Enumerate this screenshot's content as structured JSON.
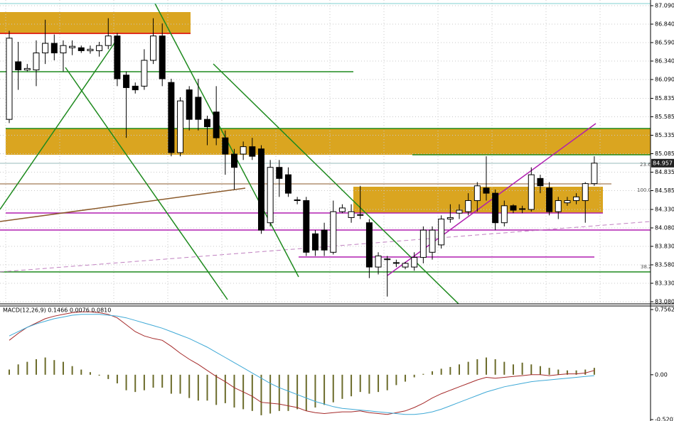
{
  "chart_data": [
    {
      "type": "candlestick",
      "ylim": [
        83.08,
        87.09
      ],
      "yticks": [
        {
          "value": 87.09,
          "label": "87.090"
        },
        {
          "value": 86.84,
          "label": "86.840"
        },
        {
          "value": 86.59,
          "label": "86.590"
        },
        {
          "value": 86.34,
          "label": "86.340"
        },
        {
          "value": 86.09,
          "label": "86.090"
        },
        {
          "value": 85.835,
          "label": "85.835"
        },
        {
          "value": 85.585,
          "label": "85.585"
        },
        {
          "value": 85.335,
          "label": "85.335"
        },
        {
          "value": 85.085,
          "label": "85.085"
        },
        {
          "value": 84.835,
          "label": "84.835"
        },
        {
          "value": 84.585,
          "label": "84.585"
        },
        {
          "value": 84.33,
          "label": "84.330"
        },
        {
          "value": 84.08,
          "label": "84.080"
        },
        {
          "value": 83.83,
          "label": "83.830"
        },
        {
          "value": 83.58,
          "label": "83.580"
        },
        {
          "value": 83.33,
          "label": "83.330"
        },
        {
          "value": 83.08,
          "label": "83.080"
        }
      ],
      "grid": true,
      "last_price": 84.957,
      "fib_labels": [
        "23.6",
        "100.0",
        "38.2"
      ],
      "up_color": "#ffffff",
      "down_color": "#000000",
      "open": [
        85.55,
        86.33,
        86.22,
        86.22,
        86.45,
        86.58,
        86.45,
        86.52,
        86.52,
        86.48,
        86.48,
        86.55,
        86.68,
        86.15,
        86.0,
        86.0,
        86.35,
        86.68,
        86.05,
        85.1,
        85.95,
        85.85,
        85.55,
        85.65,
        85.3,
        85.08,
        85.08,
        85.18,
        85.15,
        84.15,
        84.9,
        84.8,
        84.45,
        84.45,
        84.0,
        84.05,
        83.75,
        84.3,
        84.22,
        84.25,
        84.15,
        83.55,
        83.65,
        83.6,
        83.55,
        83.55,
        83.68,
        83.75,
        83.85,
        84.2,
        84.28,
        84.3,
        84.45,
        84.62,
        84.55,
        84.15,
        84.38,
        84.33,
        84.33,
        84.75,
        84.62,
        84.3,
        84.42,
        84.45,
        84.45,
        84.68
      ],
      "high": [
        86.75,
        86.6,
        86.3,
        86.62,
        86.9,
        86.7,
        86.62,
        86.62,
        86.55,
        86.55,
        86.6,
        86.92,
        86.72,
        86.2,
        86.05,
        86.5,
        86.92,
        86.85,
        86.1,
        85.85,
        86.0,
        86.1,
        85.6,
        86.0,
        85.4,
        85.15,
        85.25,
        85.3,
        85.2,
        85.0,
        85.0,
        84.9,
        84.5,
        84.5,
        84.05,
        84.15,
        84.45,
        84.4,
        84.4,
        84.65,
        84.2,
        83.75,
        83.7,
        83.65,
        83.62,
        83.75,
        84.1,
        84.1,
        84.25,
        84.4,
        84.4,
        84.55,
        84.7,
        85.05,
        84.6,
        84.45,
        84.4,
        84.38,
        84.9,
        84.8,
        84.7,
        84.5,
        84.5,
        84.55,
        84.7,
        85.05
      ],
      "low": [
        85.5,
        85.95,
        86.2,
        86.0,
        86.3,
        86.35,
        86.2,
        86.42,
        86.45,
        86.44,
        86.4,
        86.5,
        86.0,
        85.3,
        85.9,
        85.95,
        86.3,
        86.0,
        85.05,
        85.05,
        85.4,
        85.4,
        85.2,
        85.2,
        84.8,
        84.6,
        85.0,
        85.0,
        84.0,
        84.1,
        84.5,
        84.5,
        84.4,
        83.7,
        83.7,
        83.7,
        83.72,
        84.28,
        84.15,
        84.2,
        83.4,
        83.45,
        83.15,
        83.55,
        83.52,
        83.5,
        83.6,
        83.65,
        83.8,
        84.15,
        84.2,
        84.25,
        84.3,
        84.45,
        84.05,
        84.1,
        84.28,
        84.28,
        84.3,
        84.55,
        84.25,
        84.2,
        84.38,
        84.4,
        84.15,
        84.65
      ],
      "close": [
        86.65,
        86.22,
        86.24,
        86.45,
        86.58,
        86.45,
        86.55,
        86.54,
        86.48,
        86.5,
        86.55,
        86.68,
        86.1,
        85.98,
        85.95,
        86.35,
        86.68,
        86.1,
        85.1,
        85.8,
        85.55,
        85.55,
        85.45,
        85.3,
        85.08,
        84.9,
        85.18,
        85.05,
        84.05,
        84.9,
        84.75,
        84.55,
        84.46,
        83.75,
        83.78,
        83.78,
        84.3,
        84.35,
        84.3,
        84.26,
        83.55,
        83.7,
        83.66,
        83.61,
        83.6,
        83.68,
        84.05,
        84.05,
        84.2,
        84.22,
        84.32,
        84.45,
        84.65,
        84.55,
        84.15,
        84.38,
        84.32,
        84.34,
        84.8,
        84.65,
        84.3,
        84.45,
        84.45,
        84.5,
        84.68,
        84.957
      ]
    },
    {
      "type": "macd",
      "title": "MACD(12,26,9) 0.1466 0.0076 0.0810",
      "ylim": [
        -0.5201,
        0.7562
      ],
      "yticks": [
        0.7562,
        {
          "value": 0,
          "label": "0.00"
        },
        -0.5201
      ],
      "series": [
        {
          "type": "bar",
          "color": "#6b6b2a",
          "values": [
            0.06,
            0.12,
            0.15,
            0.18,
            0.2,
            0.17,
            0.15,
            0.1,
            0.06,
            0.03,
            -0.01,
            -0.05,
            -0.1,
            -0.18,
            -0.2,
            -0.18,
            -0.15,
            -0.15,
            -0.22,
            -0.22,
            -0.27,
            -0.3,
            -0.3,
            -0.35,
            -0.33,
            -0.38,
            -0.4,
            -0.42,
            -0.47,
            -0.45,
            -0.42,
            -0.42,
            -0.4,
            -0.42,
            -0.38,
            -0.35,
            -0.32,
            -0.28,
            -0.25,
            -0.2,
            -0.22,
            -0.2,
            -0.18,
            -0.12,
            -0.08,
            -0.03,
            0.01,
            0.04,
            0.07,
            0.09,
            0.12,
            0.15,
            0.18,
            0.2,
            0.18,
            0.15,
            0.12,
            0.14,
            0.12,
            0.1,
            0.08,
            0.06,
            0.05,
            0.05,
            0.06,
            0.08
          ]
        },
        {
          "type": "line",
          "color": "#a52a2a",
          "values": [
            0.4,
            0.48,
            0.55,
            0.6,
            0.65,
            0.68,
            0.7,
            0.72,
            0.73,
            0.73,
            0.72,
            0.7,
            0.66,
            0.58,
            0.5,
            0.45,
            0.42,
            0.4,
            0.33,
            0.25,
            0.18,
            0.12,
            0.05,
            -0.02,
            -0.08,
            -0.15,
            -0.2,
            -0.25,
            -0.32,
            -0.33,
            -0.34,
            -0.36,
            -0.38,
            -0.42,
            -0.44,
            -0.45,
            -0.44,
            -0.43,
            -0.43,
            -0.42,
            -0.44,
            -0.45,
            -0.46,
            -0.44,
            -0.42,
            -0.38,
            -0.33,
            -0.27,
            -0.22,
            -0.18,
            -0.14,
            -0.1,
            -0.06,
            -0.03,
            -0.04,
            -0.03,
            -0.02,
            -0.01,
            0.0,
            0.0,
            -0.01,
            0.0,
            0.01,
            0.01,
            0.02,
            0.05
          ]
        },
        {
          "type": "line",
          "color": "#3fa9d6",
          "values": [
            0.45,
            0.5,
            0.55,
            0.59,
            0.62,
            0.65,
            0.67,
            0.69,
            0.7,
            0.7,
            0.7,
            0.69,
            0.68,
            0.66,
            0.63,
            0.6,
            0.57,
            0.54,
            0.5,
            0.46,
            0.42,
            0.37,
            0.32,
            0.26,
            0.2,
            0.14,
            0.08,
            0.02,
            -0.04,
            -0.1,
            -0.15,
            -0.19,
            -0.23,
            -0.27,
            -0.31,
            -0.34,
            -0.37,
            -0.39,
            -0.4,
            -0.41,
            -0.42,
            -0.43,
            -0.44,
            -0.45,
            -0.46,
            -0.46,
            -0.45,
            -0.43,
            -0.4,
            -0.36,
            -0.32,
            -0.28,
            -0.24,
            -0.2,
            -0.17,
            -0.14,
            -0.12,
            -0.1,
            -0.08,
            -0.07,
            -0.06,
            -0.05,
            -0.04,
            -0.03,
            -0.02,
            -0.01
          ]
        }
      ]
    }
  ]
}
